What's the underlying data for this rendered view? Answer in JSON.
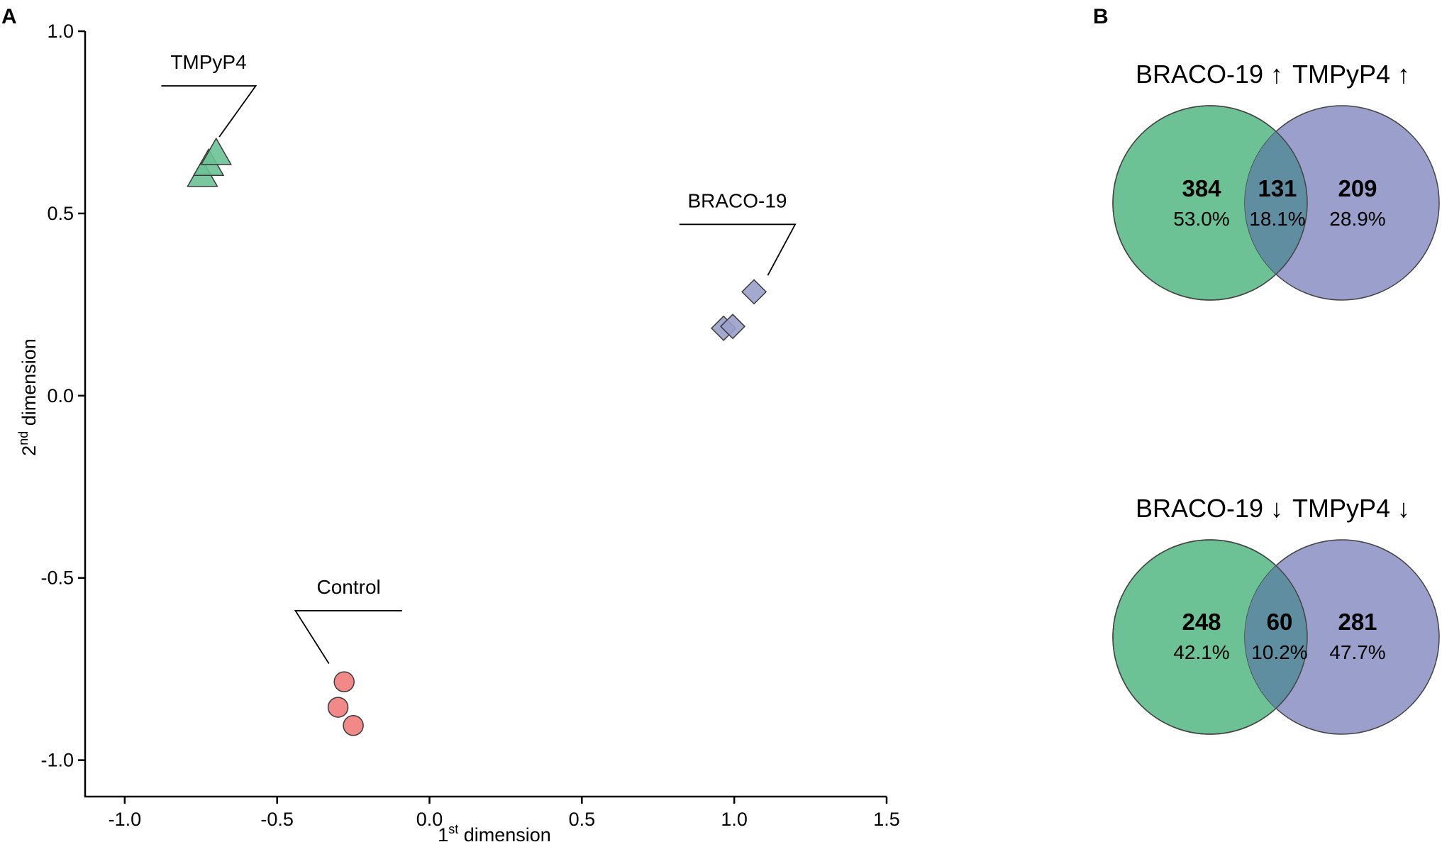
{
  "panels": {
    "a_label": "A",
    "b_label": "B"
  },
  "colors": {
    "tmpyp4": "#6cc295",
    "braco": "#9aa0cb",
    "control": "#f07c7c",
    "venn_left": "#6cc295",
    "venn_right": "#9aa0cb",
    "venn_overlap": "#5f8ea0",
    "axis": "#000000",
    "marker_stroke": "#3a3a3a"
  },
  "chart_data": [
    {
      "type": "scatter",
      "title": "",
      "xlabel_main": "1",
      "xlabel_sup": "st",
      "xlabel_rest": " dimension",
      "ylabel_main": "2",
      "ylabel_sup": "nd",
      "ylabel_rest": " dimension",
      "xlim": [
        -1.13,
        1.5
      ],
      "ylim": [
        -1.1,
        1.0
      ],
      "xticks": [
        -1.0,
        -0.5,
        0.0,
        0.5,
        1.0,
        1.5
      ],
      "xtick_labels": [
        "-1.0",
        "-0.5",
        "0.0",
        "0.5",
        "1.0",
        "1.5"
      ],
      "yticks": [
        1.0,
        0.5,
        0.0,
        -0.5,
        -1.0
      ],
      "ytick_labels": [
        "1.0",
        "0.5",
        "0.0",
        "-0.5",
        "-1.0"
      ],
      "series": [
        {
          "name": "TMPyP4",
          "marker": "triangle",
          "color_key": "tmpyp4",
          "points": [
            [
              -0.7,
              0.665
            ],
            [
              -0.725,
              0.635
            ],
            [
              -0.745,
              0.605
            ]
          ],
          "label_anchor": [
            -0.69,
            0.71
          ],
          "label_bend": [
            -0.57,
            0.85
          ],
          "label_line_end": [
            -0.88,
            0.85
          ]
        },
        {
          "name": "BRACO-19",
          "marker": "diamond",
          "color_key": "braco",
          "points": [
            [
              1.065,
              0.285
            ],
            [
              0.995,
              0.19
            ],
            [
              0.965,
              0.185
            ]
          ],
          "label_anchor": [
            1.11,
            0.33
          ],
          "label_bend": [
            1.2,
            0.47
          ],
          "label_line_end": [
            0.82,
            0.47
          ]
        },
        {
          "name": "Control",
          "marker": "circle",
          "color_key": "control",
          "points": [
            [
              -0.28,
              -0.785
            ],
            [
              -0.3,
              -0.855
            ],
            [
              -0.25,
              -0.905
            ]
          ],
          "label_anchor": [
            -0.33,
            -0.735
          ],
          "label_bend": [
            -0.44,
            -0.59
          ],
          "label_line_end": [
            -0.09,
            -0.59
          ]
        }
      ]
    },
    {
      "type": "venn",
      "left_label": "BRACO-19 ↑",
      "right_label": "TMPyP4 ↑",
      "left_only": {
        "count": "384",
        "percent": "53.0%"
      },
      "overlap": {
        "count": "131",
        "percent": "18.1%"
      },
      "right_only": {
        "count": "209",
        "percent": "28.9%"
      }
    },
    {
      "type": "venn",
      "left_label": "BRACO-19 ↓",
      "right_label": "TMPyP4 ↓",
      "left_only": {
        "count": "248",
        "percent": "42.1%"
      },
      "overlap": {
        "count": "60",
        "percent": "10.2%"
      },
      "right_only": {
        "count": "281",
        "percent": "47.7%"
      }
    }
  ]
}
